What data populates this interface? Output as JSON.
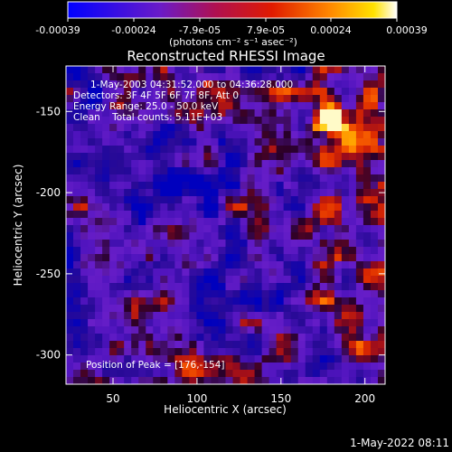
{
  "colorbar": {
    "ticks": [
      "-0.00039",
      "-0.00024",
      "-7.9e-05",
      "7.9e-05",
      "0.00024",
      "0.00039"
    ],
    "range": [
      -0.00039,
      0.00039
    ],
    "units_label": "(photons cm⁻² s⁻¹ asec⁻²)",
    "colormap": [
      "#000000",
      "#3a00a8",
      "#0000ff",
      "#8a2be2",
      "#c8103a",
      "#ff5a00",
      "#ffd200",
      "#ffffff"
    ]
  },
  "image": {
    "title": "Reconstructed RHESSI Image",
    "info_lines": [
      "1-May-2003 04:31:52.000 to 04:36:28.000",
      "Detectors: 3F 4F 5F 6F 7F 8F, Att 0",
      "Energy Range: 25.0 - 50.0 keV",
      "Clean    Total counts: 5.11E+03"
    ],
    "peak_label": "Position of Peak = [176,-154]",
    "peak_position": [
      176,
      -154
    ]
  },
  "axes": {
    "xlabel": "Heliocentric X (arcsec)",
    "ylabel": "Heliocentric Y (arcsec)",
    "xlim": [
      22,
      212
    ],
    "ylim": [
      -318,
      -122
    ],
    "x_ticks": [
      "50",
      "100",
      "150",
      "200"
    ],
    "y_ticks": [
      "-150",
      "-200",
      "-250",
      "-300"
    ]
  },
  "footer": {
    "timestamp": "1-May-2022 08:11"
  }
}
